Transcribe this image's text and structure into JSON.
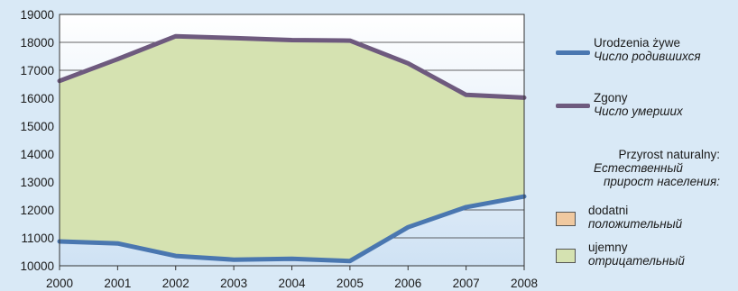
{
  "chart_data": {
    "type": "area",
    "x": [
      2000,
      2001,
      2002,
      2003,
      2004,
      2005,
      2006,
      2007,
      2008
    ],
    "xticks": [
      "2000",
      "2001",
      "2002",
      "2003",
      "2004",
      "2005",
      "2006",
      "2007",
      "2008"
    ],
    "yticks": [
      "10000",
      "11000",
      "12000",
      "13000",
      "14000",
      "15000",
      "16000",
      "17000",
      "18000",
      "19000"
    ],
    "ylim": [
      10000,
      19000
    ],
    "grid": true,
    "legend_position": "right",
    "series": [
      {
        "name": "Urodzenia żywe",
        "name_alt": "Число родившихся",
        "color": "#4a77b0",
        "values": [
          10870,
          10800,
          10350,
          10220,
          10250,
          10170,
          11380,
          12100,
          12480
        ]
      },
      {
        "name": "Zgony",
        "name_alt": "Число умерших",
        "color": "#6e5a7e",
        "values": [
          16620,
          17400,
          18220,
          18150,
          18080,
          18060,
          17250,
          16120,
          16020
        ]
      }
    ],
    "fill_legend_title": "Przyrost naturalny:",
    "fill_legend_title_alt_1": "Естественный",
    "fill_legend_title_alt_2": "прирост населения:",
    "fills": [
      {
        "name": "dodatni",
        "name_alt": "положительный",
        "color": "#f0c9a0"
      },
      {
        "name": "ujemny",
        "name_alt": "отрицательный",
        "color": "#d5e2b1"
      }
    ]
  }
}
